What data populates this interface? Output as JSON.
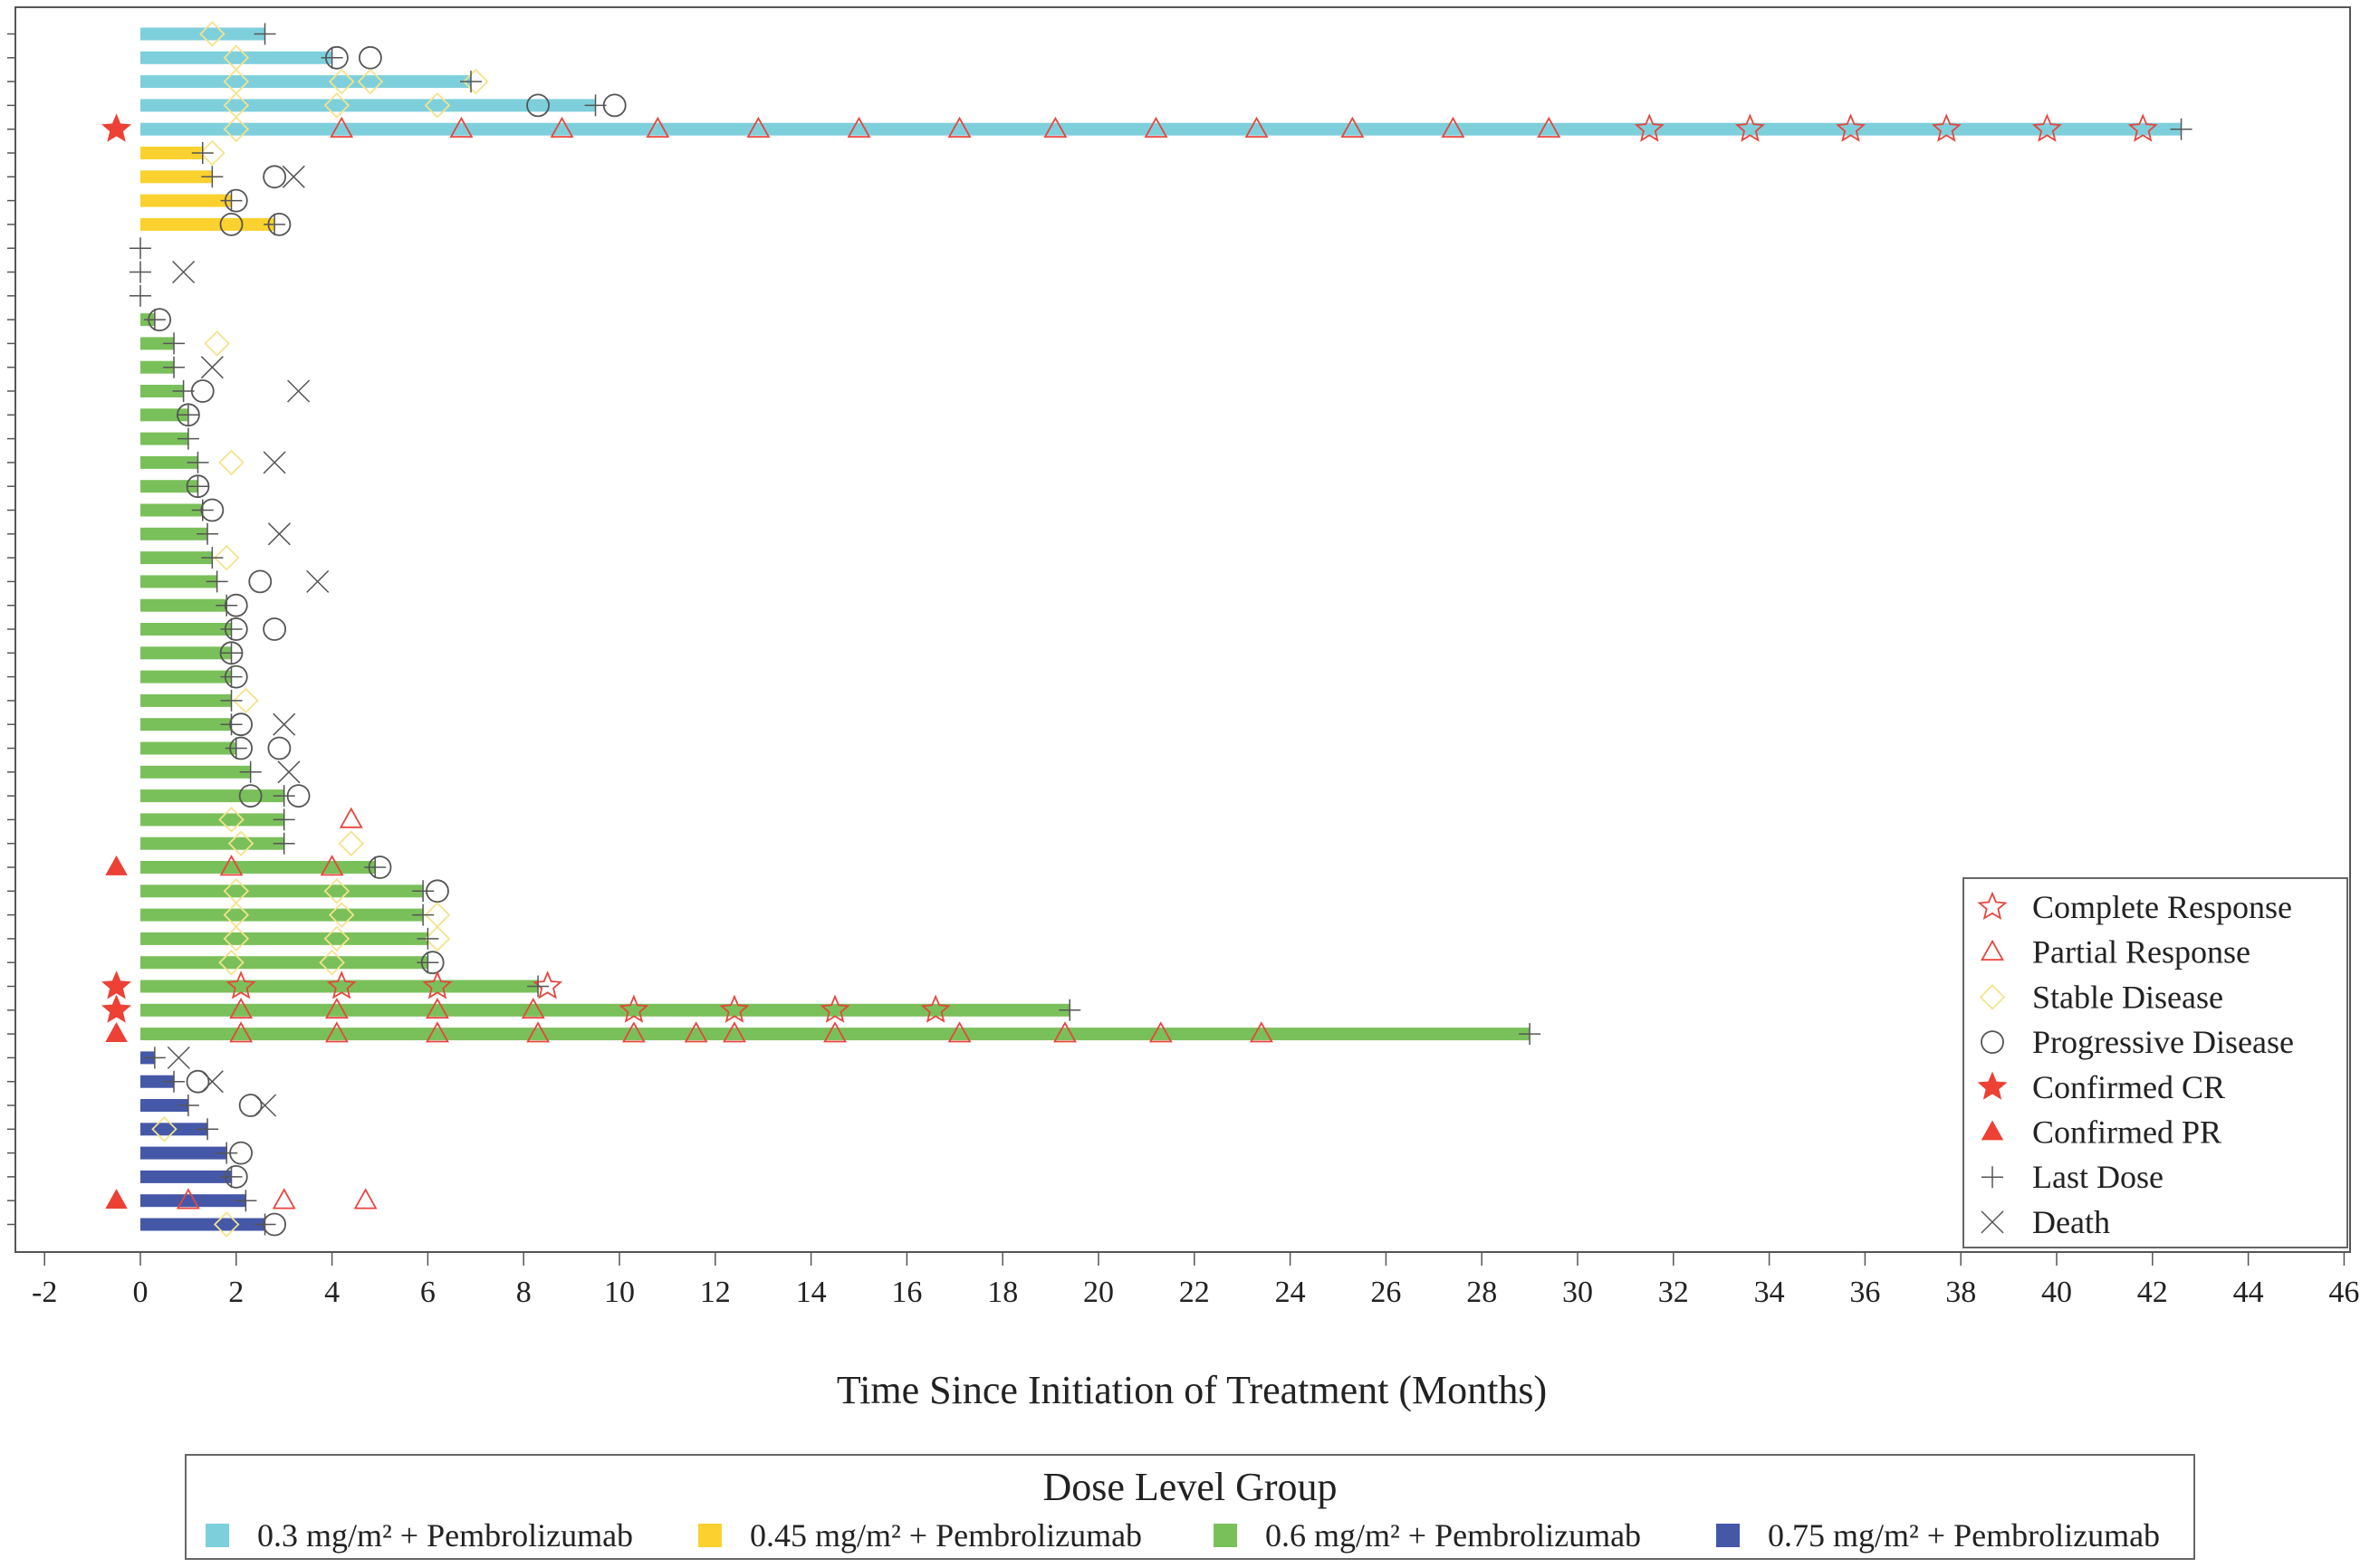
{
  "chart_data": {
    "type": "swimmer",
    "xlabel": "Time Since Initiation of Treatment (Months)",
    "xlim": [
      -2,
      46
    ],
    "x_ticks": [
      -2,
      0,
      2,
      4,
      6,
      8,
      10,
      12,
      14,
      16,
      18,
      20,
      22,
      24,
      26,
      28,
      30,
      32,
      34,
      36,
      38,
      40,
      42,
      44,
      46
    ],
    "grid": false,
    "response_legend_position": "bottom-right inside plot",
    "response_legend": [
      {
        "key": "CR",
        "label": "Complete Response"
      },
      {
        "key": "PR",
        "label": "Partial Response"
      },
      {
        "key": "SD",
        "label": "Stable Disease"
      },
      {
        "key": "PD",
        "label": "Progressive Disease"
      },
      {
        "key": "CCR",
        "label": "Confirmed CR"
      },
      {
        "key": "CPR",
        "label": "Confirmed PR"
      },
      {
        "key": "LD",
        "label": "Last Dose"
      },
      {
        "key": "DT",
        "label": "Death"
      }
    ],
    "group_legend_title": "Dose Level Group",
    "group_legend_position": "bottom",
    "groups": [
      {
        "key": "g03",
        "label": "0.3 mg/m² + Pembrolizumab",
        "color": "#7ecfdc"
      },
      {
        "key": "g045",
        "label": "0.45 mg/m² + Pembrolizumab",
        "color": "#fad12e"
      },
      {
        "key": "g06",
        "label": "0.6 mg/m² + Pembrolizumab",
        "color": "#7ac05a"
      },
      {
        "key": "g075",
        "label": "0.75 mg/m² + Pembrolizumab",
        "color": "#4558a8"
      }
    ],
    "colors": {
      "response": "#e8453c",
      "stable": "#f4e38a",
      "neutral": "#555555",
      "confirmed": "#ec4134"
    },
    "patients": [
      {
        "group": "g03",
        "duration": 2.6,
        "last_dose": 2.6,
        "SD": [
          1.5
        ]
      },
      {
        "group": "g03",
        "duration": 4.0,
        "last_dose": 4.0,
        "SD": [
          2.0
        ],
        "PD": [
          4.1,
          4.8
        ]
      },
      {
        "group": "g03",
        "duration": 6.9,
        "last_dose": 6.9,
        "SD": [
          2.0,
          4.2,
          4.8,
          7.0
        ]
      },
      {
        "group": "g03",
        "duration": 9.5,
        "last_dose": 9.5,
        "SD": [
          2.0,
          4.1,
          6.2
        ],
        "PD": [
          8.3,
          9.9
        ]
      },
      {
        "group": "g03",
        "duration": 42.6,
        "last_dose": 42.6,
        "confirmed": "CR",
        "SD": [
          2.0
        ],
        "PR": [
          4.2,
          6.7,
          8.8,
          10.8,
          12.9,
          15.0,
          17.1,
          19.1,
          21.2,
          23.3,
          25.3,
          27.4,
          29.4
        ],
        "CR": [
          31.5,
          33.6,
          35.7,
          37.7,
          39.8,
          41.8
        ]
      },
      {
        "group": "g045",
        "duration": 1.3,
        "last_dose": 1.3,
        "SD": [
          1.5
        ]
      },
      {
        "group": "g045",
        "duration": 1.5,
        "last_dose": 1.5,
        "PD": [
          2.8
        ],
        "DT": [
          3.2
        ]
      },
      {
        "group": "g045",
        "duration": 1.9,
        "last_dose": 1.9,
        "PD": [
          2.0
        ]
      },
      {
        "group": "g045",
        "duration": 2.8,
        "last_dose": 2.8,
        "PD": [
          1.9,
          2.9
        ]
      },
      {
        "group": "g06",
        "duration": 0,
        "last_dose": 0
      },
      {
        "group": "g06",
        "duration": 0,
        "last_dose": 0,
        "DT": [
          0.9
        ]
      },
      {
        "group": "g06",
        "duration": 0,
        "last_dose": 0
      },
      {
        "group": "g06",
        "duration": 0.3,
        "last_dose": 0.3,
        "PD": [
          0.4
        ]
      },
      {
        "group": "g06",
        "duration": 0.7,
        "last_dose": 0.7,
        "SD": [
          1.6
        ]
      },
      {
        "group": "g06",
        "duration": 0.7,
        "last_dose": 0.7,
        "DT": [
          1.5
        ]
      },
      {
        "group": "g06",
        "duration": 0.9,
        "last_dose": 0.9,
        "PD": [
          1.3
        ],
        "DT": [
          3.3
        ]
      },
      {
        "group": "g06",
        "duration": 1.0,
        "last_dose": 1.0,
        "PD": [
          1.0
        ]
      },
      {
        "group": "g06",
        "duration": 1.0,
        "last_dose": 1.0
      },
      {
        "group": "g06",
        "duration": 1.2,
        "last_dose": 1.2,
        "SD": [
          1.9
        ],
        "DT": [
          2.8
        ]
      },
      {
        "group": "g06",
        "duration": 1.2,
        "last_dose": 1.2,
        "PD": [
          1.2
        ]
      },
      {
        "group": "g06",
        "duration": 1.3,
        "last_dose": 1.3,
        "PD": [
          1.5
        ]
      },
      {
        "group": "g06",
        "duration": 1.4,
        "last_dose": 1.4,
        "DT": [
          2.9
        ]
      },
      {
        "group": "g06",
        "duration": 1.5,
        "last_dose": 1.5,
        "SD": [
          1.8
        ]
      },
      {
        "group": "g06",
        "duration": 1.6,
        "last_dose": 1.6,
        "PD": [
          2.5
        ],
        "DT": [
          3.7
        ]
      },
      {
        "group": "g06",
        "duration": 1.8,
        "last_dose": 1.8,
        "PD": [
          2.0
        ]
      },
      {
        "group": "g06",
        "duration": 1.9,
        "last_dose": 1.9,
        "PD": [
          2.0,
          2.8
        ]
      },
      {
        "group": "g06",
        "duration": 1.9,
        "last_dose": 1.9,
        "PD": [
          1.9
        ]
      },
      {
        "group": "g06",
        "duration": 1.9,
        "last_dose": 1.9,
        "PD": [
          2.0
        ]
      },
      {
        "group": "g06",
        "duration": 1.9,
        "last_dose": 1.9,
        "SD": [
          2.2
        ]
      },
      {
        "group": "g06",
        "duration": 1.9,
        "last_dose": 1.9,
        "PD": [
          2.1
        ],
        "DT": [
          3.0
        ]
      },
      {
        "group": "g06",
        "duration": 2.0,
        "last_dose": 2.0,
        "PD": [
          2.1,
          2.9
        ]
      },
      {
        "group": "g06",
        "duration": 2.3,
        "last_dose": 2.3,
        "DT": [
          3.1
        ]
      },
      {
        "group": "g06",
        "duration": 3.0,
        "last_dose": 3.0,
        "PD": [
          2.3,
          3.3
        ]
      },
      {
        "group": "g06",
        "duration": 3.0,
        "last_dose": 3.0,
        "SD": [
          1.9
        ],
        "PR": [
          4.4
        ]
      },
      {
        "group": "g06",
        "duration": 3.0,
        "last_dose": 3.0,
        "SD": [
          2.1,
          4.4
        ]
      },
      {
        "group": "g06",
        "duration": 4.9,
        "last_dose": 4.9,
        "confirmed": "PR",
        "PR": [
          1.9,
          4.0
        ],
        "PD": [
          5.0
        ]
      },
      {
        "group": "g06",
        "duration": 5.9,
        "last_dose": 5.9,
        "SD": [
          2.0,
          4.1
        ],
        "PD": [
          6.2
        ]
      },
      {
        "group": "g06",
        "duration": 5.9,
        "last_dose": 5.9,
        "SD": [
          2.0,
          4.2,
          6.2
        ]
      },
      {
        "group": "g06",
        "duration": 6.0,
        "last_dose": 6.0,
        "SD": [
          2.0,
          4.1,
          6.2
        ]
      },
      {
        "group": "g06",
        "duration": 6.0,
        "last_dose": 6.0,
        "SD": [
          1.9,
          4.0
        ],
        "PD": [
          6.1
        ]
      },
      {
        "group": "g06",
        "duration": 8.3,
        "last_dose": 8.3,
        "confirmed": "CR",
        "CR": [
          2.1,
          4.2,
          6.2,
          8.5
        ]
      },
      {
        "group": "g06",
        "duration": 19.4,
        "last_dose": 19.4,
        "confirmed": "CR",
        "PR": [
          2.1,
          4.1,
          6.2,
          8.2
        ],
        "CR": [
          10.3,
          12.4,
          14.5,
          16.6
        ]
      },
      {
        "group": "g06",
        "duration": 29.0,
        "last_dose": 29.0,
        "confirmed": "PR",
        "PR": [
          2.1,
          4.1,
          6.2,
          8.3,
          10.3,
          11.6,
          12.4,
          14.5,
          17.1,
          19.3,
          21.3,
          23.4
        ]
      },
      {
        "group": "g075",
        "duration": 0.3,
        "last_dose": 0.3,
        "DT": [
          0.8
        ]
      },
      {
        "group": "g075",
        "duration": 0.7,
        "last_dose": 0.7,
        "PD": [
          1.2
        ],
        "DT": [
          1.5
        ]
      },
      {
        "group": "g075",
        "duration": 1.0,
        "last_dose": 1.0,
        "PD": [
          2.3
        ],
        "DT": [
          2.6
        ]
      },
      {
        "group": "g075",
        "duration": 1.4,
        "last_dose": 1.4,
        "SD": [
          0.5
        ]
      },
      {
        "group": "g075",
        "duration": 1.8,
        "last_dose": 1.8,
        "PD": [
          2.1
        ]
      },
      {
        "group": "g075",
        "duration": 1.9,
        "last_dose": 1.9,
        "PD": [
          2.0
        ]
      },
      {
        "group": "g075",
        "duration": 2.2,
        "last_dose": 2.2,
        "confirmed": "PR",
        "PR": [
          1.0,
          3.0,
          4.7
        ]
      },
      {
        "group": "g075",
        "duration": 2.6,
        "last_dose": 2.6,
        "SD": [
          1.8
        ],
        "PD": [
          2.8
        ]
      }
    ]
  }
}
